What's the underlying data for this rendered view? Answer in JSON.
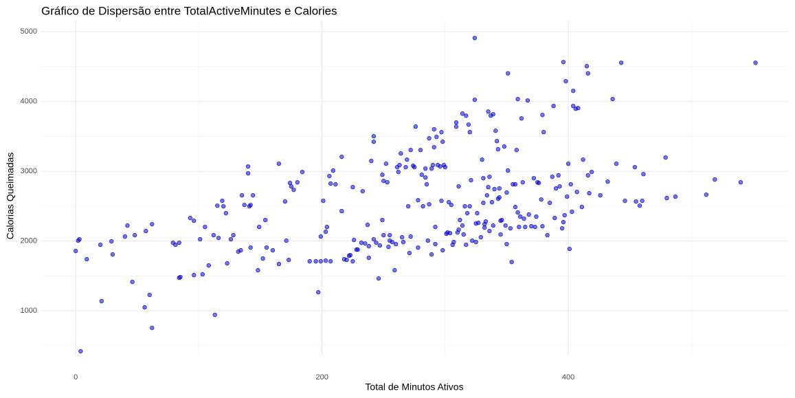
{
  "chart_data": {
    "type": "scatter",
    "title": "Gráfico de Dispersão entre TotalActiveMinutes e Calories",
    "x_label": "Total de Minutos Ativos",
    "y_label": "Calorias Queimadas",
    "color": "#0000ff",
    "edge_color": "#00008b",
    "alpha": 0.55,
    "grid": true,
    "xlim": [
      -28,
      578.5
    ],
    "ylim": [
      360,
      5160
    ],
    "xticks": [
      0,
      200,
      400
    ],
    "yticks": [
      1000,
      2000,
      3000,
      4000,
      5000
    ],
    "x_minor_ticks": [
      100,
      300,
      500
    ],
    "y_minor_ticks": [
      500,
      1500,
      2500,
      3500,
      4500
    ],
    "x": [
      0,
      2,
      3,
      4,
      9,
      20,
      21,
      29,
      30,
      40,
      42,
      46,
      48,
      56,
      57,
      60,
      62,
      62,
      79,
      81,
      84,
      84,
      85,
      93,
      96,
      96,
      101,
      103,
      105,
      108,
      112,
      113,
      115,
      116,
      119,
      120,
      122,
      123,
      126,
      128,
      132,
      134,
      135,
      137,
      140,
      140,
      141,
      142,
      142,
      144,
      148,
      149,
      152,
      154,
      155,
      160,
      165,
      165,
      170,
      171,
      173,
      174,
      175,
      177,
      180,
      184,
      190,
      195,
      197,
      199,
      199,
      201,
      203,
      203,
      204,
      206,
      207,
      207,
      209,
      211,
      216,
      216,
      218,
      220,
      222,
      223,
      225,
      225,
      226,
      228,
      229,
      232,
      233,
      235,
      237,
      238,
      238,
      240,
      242,
      242,
      242,
      244,
      246,
      247,
      249,
      249,
      250,
      250,
      252,
      253,
      254,
      255,
      255,
      257,
      259,
      260,
      261,
      262,
      263,
      264,
      265,
      266,
      268,
      269,
      270,
      271,
      272,
      272,
      274,
      275,
      276,
      278,
      278,
      280,
      281,
      282,
      284,
      284,
      285,
      286,
      287,
      287,
      289,
      289,
      290,
      291,
      291,
      292,
      292,
      293,
      294,
      296,
      297,
      297,
      298,
      298,
      299,
      300,
      301,
      302,
      303,
      304,
      305,
      306,
      307,
      309,
      309,
      310,
      311,
      311,
      312,
      314,
      314,
      315,
      316,
      317,
      317,
      318,
      319,
      320,
      320,
      321,
      322,
      324,
      324,
      325,
      325,
      326,
      327,
      329,
      330,
      331,
      331,
      332,
      332,
      333,
      334,
      335,
      335,
      336,
      336,
      337,
      338,
      339,
      339,
      340,
      341,
      342,
      343,
      343,
      344,
      344,
      345,
      345,
      346,
      348,
      349,
      350,
      350,
      351,
      351,
      353,
      354,
      355,
      357,
      357,
      358,
      359,
      359,
      360,
      361,
      362,
      363,
      364,
      365,
      367,
      368,
      370,
      372,
      373,
      374,
      375,
      376,
      378,
      379,
      379,
      380,
      383,
      385,
      387,
      388,
      389,
      390,
      392,
      393,
      395,
      396,
      396,
      397,
      398,
      399,
      400,
      401,
      402,
      403,
      404,
      404,
      406,
      407,
      408,
      411,
      412,
      415,
      416,
      416,
      417,
      419,
      426,
      432,
      436,
      439,
      443,
      446,
      454,
      455,
      458,
      460,
      461,
      479,
      480,
      487,
      512,
      519,
      540,
      552
    ],
    "y": [
      1857,
      2005,
      2025,
      419,
      1739,
      1946,
      1138,
      1995,
      1808,
      2064,
      2222,
      1414,
      2084,
      1049,
      2143,
      1227,
      754,
      2241,
      1975,
      1946,
      1975,
      1473,
      1483,
      2330,
      2291,
      1512,
      2025,
      1522,
      2202,
      1650,
      2084,
      941,
      2507,
      2044,
      2576,
      2498,
      2399,
      1680,
      2025,
      2084,
      1847,
      1867,
      2655,
      2517,
      3069,
      2970,
      2498,
      2517,
      1906,
      2655,
      1581,
      2202,
      1749,
      2301,
      1906,
      1867,
      1670,
      3108,
      2567,
      2005,
      1729,
      2833,
      2783,
      2734,
      2842,
      2990,
      1709,
      1709,
      1266,
      1709,
      2064,
      2576,
      2133,
      1719,
      2202,
      2931,
      2823,
      1709,
      3010,
      2813,
      3207,
      2429,
      1739,
      1729,
      1788,
      1798,
      1709,
      2773,
      2015,
      1877,
      1877,
      1975,
      2714,
      1965,
      2232,
      1759,
      1926,
      3148,
      3502,
      3423,
      2025,
      1975,
      1463,
      1936,
      2301,
      2950,
      2084,
      2862,
      3108,
      2842,
      1916,
      2005,
      2084,
      1985,
      1581,
      1956,
      3059,
      2990,
      3089,
      3256,
      2054,
      1985,
      3059,
      3167,
      2498,
      1827,
      3305,
      2064,
      3079,
      3059,
      3640,
      1906,
      2586,
      3305,
      2950,
      2498,
      2911,
      3039,
      2813,
      2005,
      3472,
      2527,
      3039,
      1808,
      3089,
      3601,
      3345,
      1956,
      2202,
      3492,
      3089,
      3069,
      2576,
      3561,
      1867,
      3423,
      3089,
      3059,
      2104,
      2123,
      2557,
      2113,
      2517,
      1946,
      1985,
      3699,
      3640,
      2123,
      2783,
      2163,
      2301,
      2222,
      3827,
      2094,
      2498,
      3797,
      1946,
      2399,
      3669,
      3561,
      2498,
      2872,
      2005,
      4025,
      4911,
      1985,
      2251,
      2399,
      2261,
      2054,
      3167,
      2901,
      2547,
      2241,
      2192,
      2281,
      2655,
      3856,
      2773,
      2143,
      2921,
      3797,
      2557,
      3817,
      2222,
      2744,
      3581,
      3433,
      2606,
      3315,
      2626,
      2754,
      2094,
      2291,
      2301,
      3355,
      2222,
      1956,
      2695,
      4404,
      3010,
      2182,
      1699,
      2813,
      2488,
      2813,
      3305,
      2409,
      4035,
      2202,
      2350,
      3758,
      2842,
      2320,
      2202,
      4015,
      2380,
      2212,
      2901,
      2202,
      2350,
      2842,
      2833,
      2596,
      3807,
      2212,
      3561,
      2084,
      2547,
      2921,
      3936,
      2330,
      2754,
      2941,
      2783,
      2182,
      4566,
      2271,
      2370,
      4291,
      2636,
      3108,
      1887,
      2813,
      2419,
      4153,
      3936,
      3896,
      2704,
      3906,
      2488,
      3167,
      4507,
      2941,
      4404,
      2685,
      2990,
      2655,
      2852,
      4035,
      3108,
      4556,
      2576,
      3059,
      2567,
      2507,
      2576,
      2960,
      3197,
      2616,
      2636,
      2665,
      2882,
      2842,
      4556
    ]
  }
}
